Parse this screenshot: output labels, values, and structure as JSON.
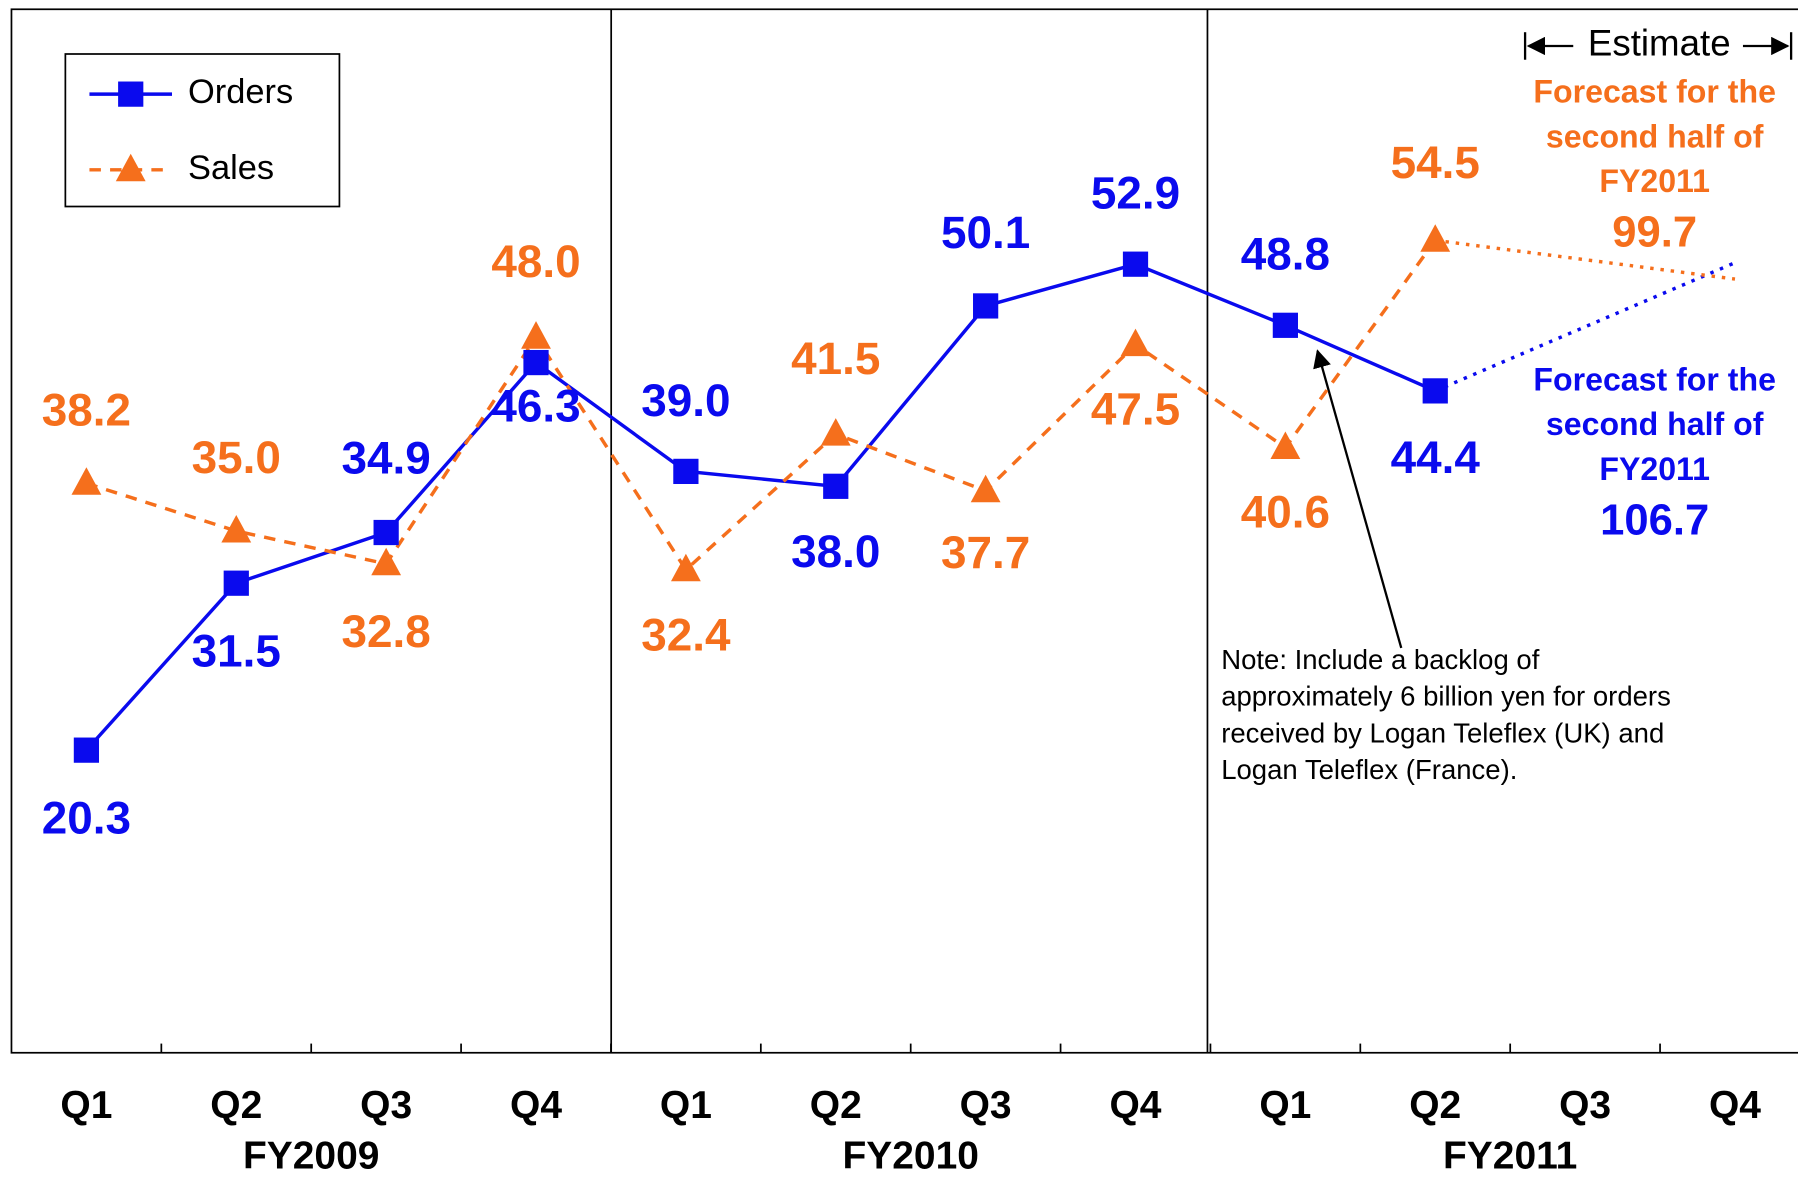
{
  "chart_data": {
    "type": "line",
    "categories": [
      "Q1",
      "Q2",
      "Q3",
      "Q4",
      "Q1",
      "Q2",
      "Q3",
      "Q4",
      "Q1",
      "Q2",
      "Q3",
      "Q4"
    ],
    "groups": [
      "FY2009",
      "FY2010",
      "FY2011"
    ],
    "ylim": [
      0,
      70
    ],
    "forecast_from": 9,
    "series": [
      {
        "name": "Orders",
        "color": "#0a0aee",
        "marker": "square",
        "line_style": "solid",
        "values": [
          20.3,
          31.5,
          34.9,
          46.3,
          39.0,
          38.0,
          50.1,
          52.9,
          48.8,
          44.4,
          null,
          53.0
        ],
        "value_labels": [
          "20.3",
          "31.5",
          "34.9",
          "46.3",
          "39.0",
          "38.0",
          "50.1",
          "52.9",
          "48.8",
          "44.4",
          null,
          null
        ]
      },
      {
        "name": "Sales",
        "color": "#f56f1c",
        "marker": "triangle",
        "line_style": "dashed",
        "values": [
          38.2,
          35.0,
          32.8,
          48.0,
          32.4,
          41.5,
          37.7,
          47.5,
          40.6,
          54.5,
          null,
          51.9
        ],
        "value_labels": [
          "38.2",
          "35.0",
          "32.8",
          "48.0",
          "32.4",
          "41.5",
          "37.7",
          "47.5",
          "40.6",
          "54.5",
          null,
          null
        ]
      }
    ],
    "legend": "upper left",
    "annotations": {
      "estimate": "Estimate",
      "forecast_sales": {
        "lines": [
          "Forecast for the",
          "second half of",
          "FY2011"
        ],
        "value": "99.7"
      },
      "forecast_orders": {
        "lines": [
          "Forecast for the",
          "second half of",
          "FY2011"
        ],
        "value": "106.7"
      },
      "note": [
        "Note: Include a backlog of",
        "approximately 6 billion yen for orders",
        "received by Logan Teleflex (UK) and",
        "Logan Teleflex (France)."
      ]
    }
  }
}
